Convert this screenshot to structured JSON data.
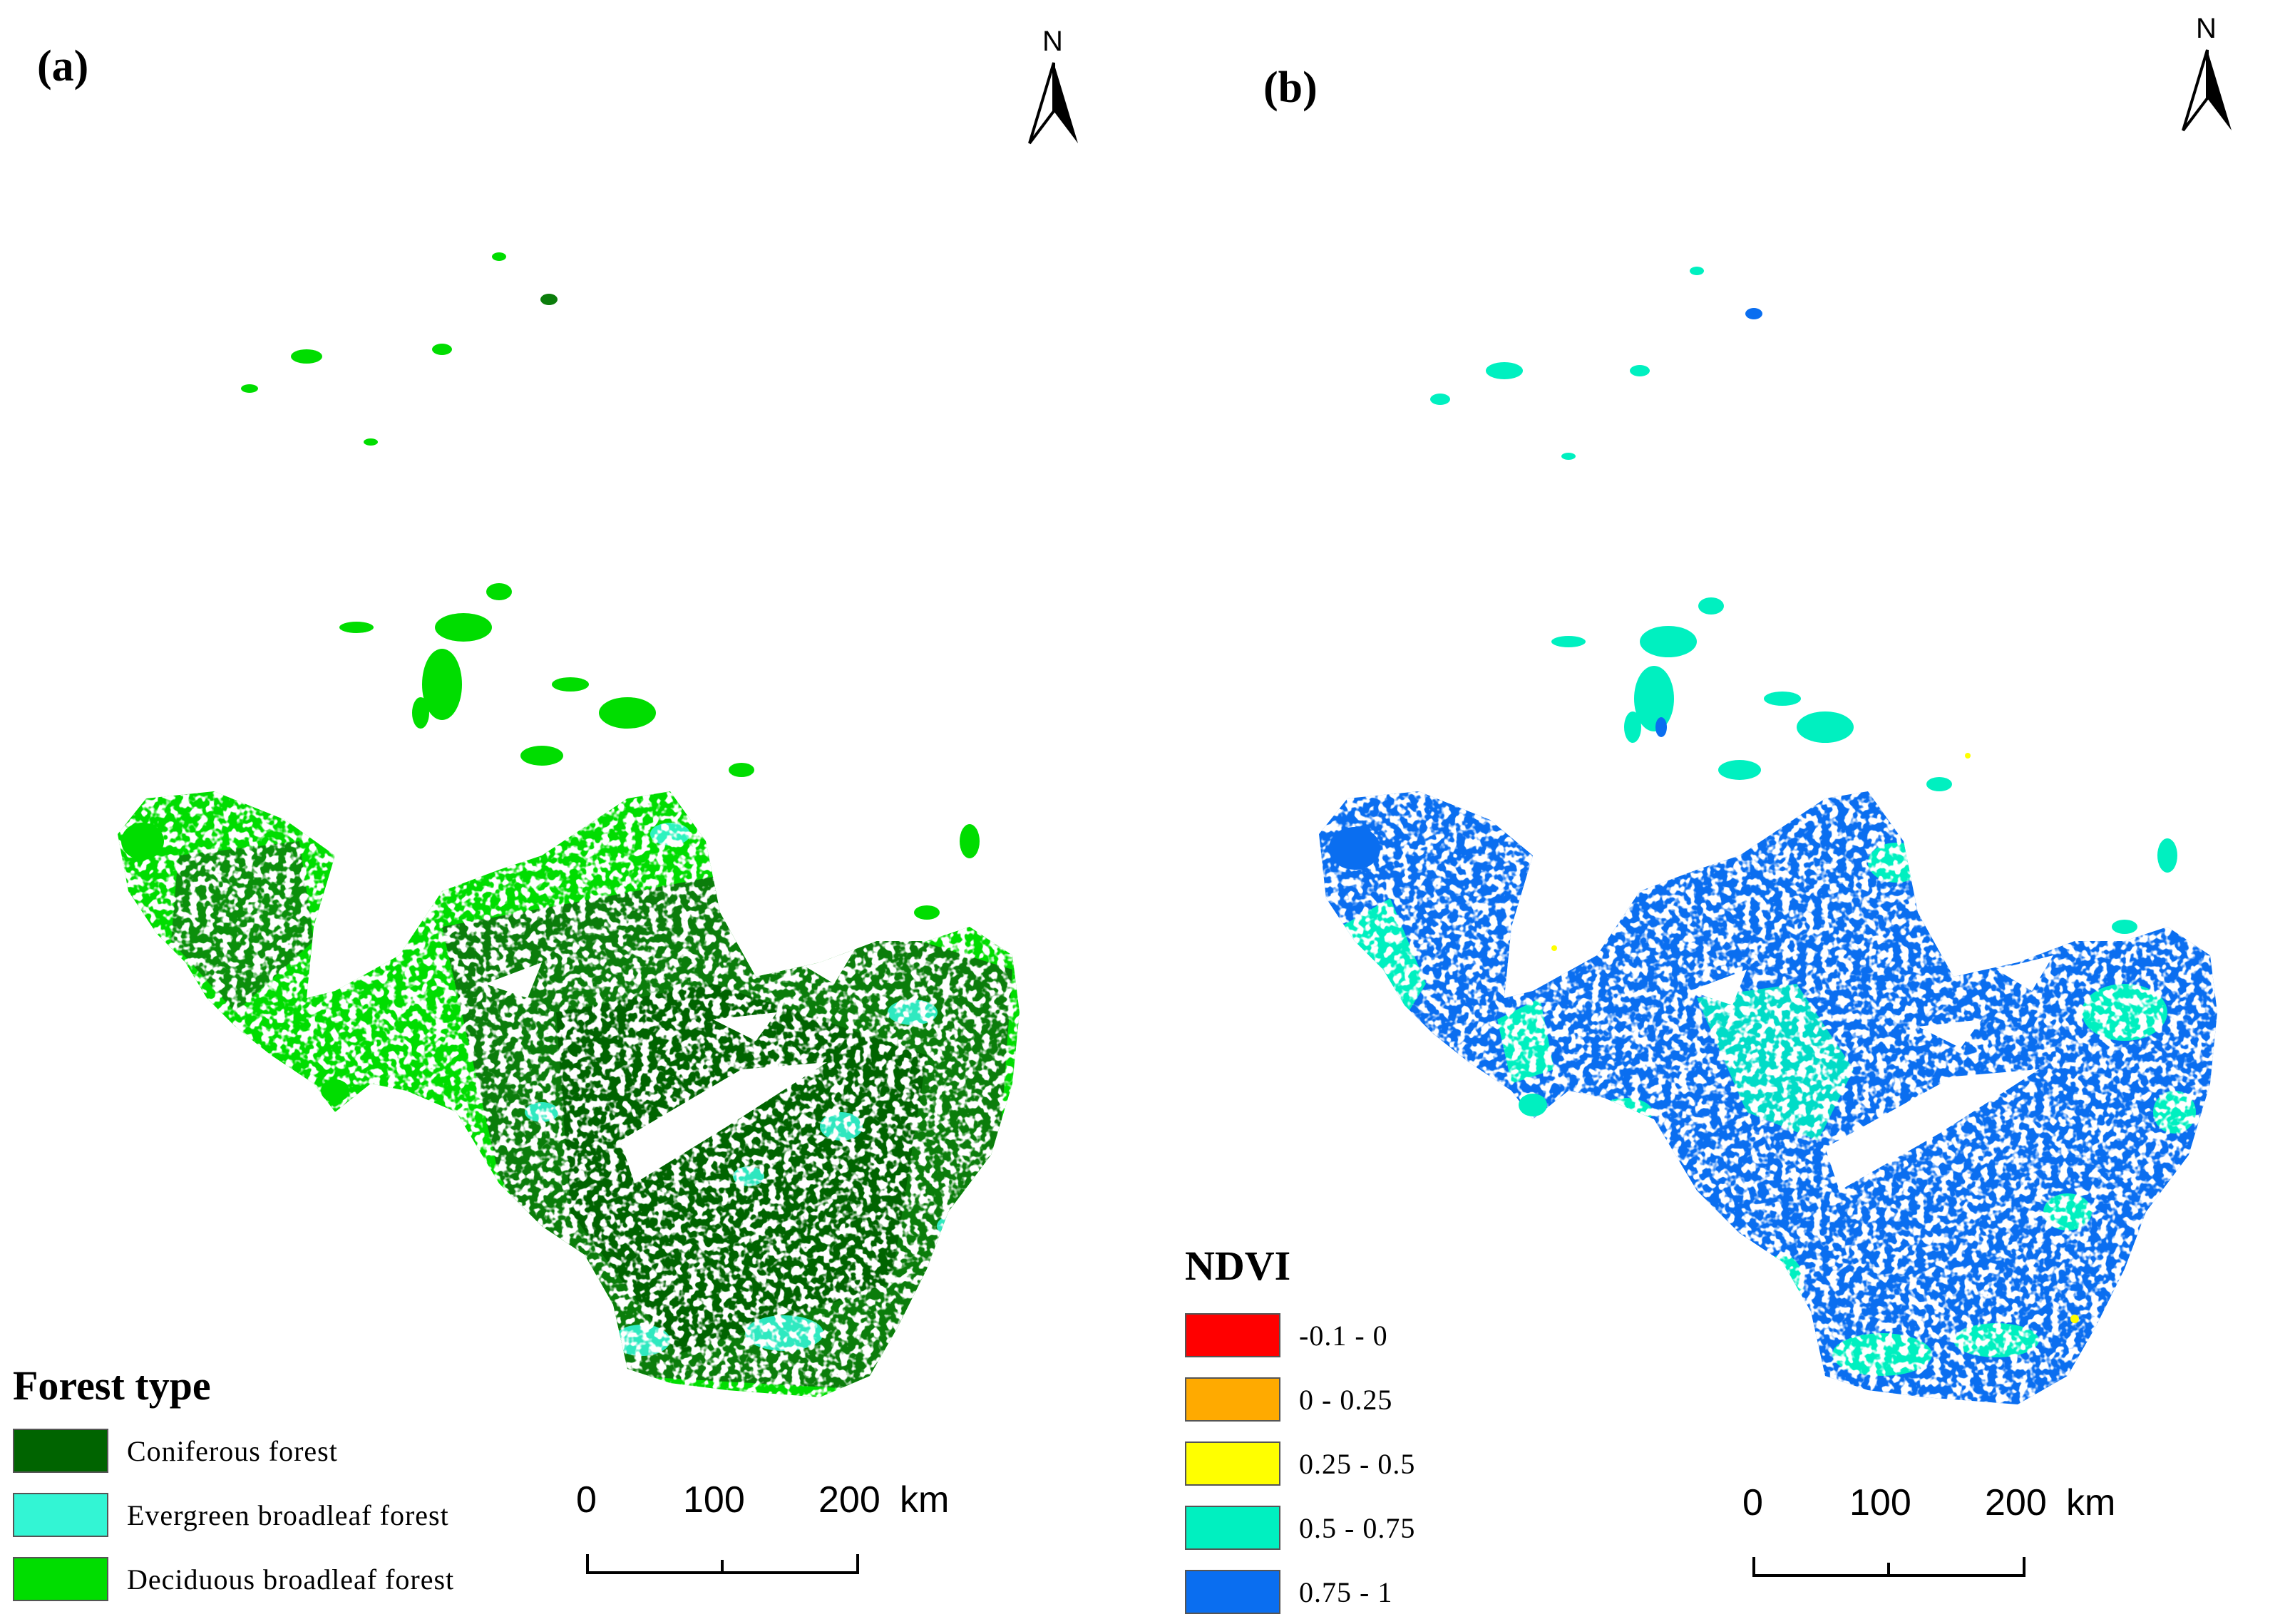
{
  "panels": {
    "a": {
      "label": "(a)",
      "north": "N"
    },
    "b": {
      "label": "(b)",
      "north": "N"
    }
  },
  "forest_legend": {
    "title": "Forest type",
    "items": [
      {
        "label": "Coniferous forest",
        "color": "#006400"
      },
      {
        "label": "Evergreen broadleaf forest",
        "color": "#33f5d4"
      },
      {
        "label": "Deciduous broadleaf forest",
        "color": "#00dd00"
      }
    ]
  },
  "ndvi_legend": {
    "title": "NDVI",
    "items": [
      {
        "label": "-0.1 - 0",
        "color": "#ff0000"
      },
      {
        "label": "0 - 0.25",
        "color": "#ffaa00"
      },
      {
        "label": "0.25 - 0.5",
        "color": "#ffff00"
      },
      {
        "label": "0.5 - 0.75",
        "color": "#00f0c0"
      },
      {
        "label": "0.75 - 1",
        "color": "#0a6ef0"
      }
    ]
  },
  "scalebar": {
    "ticks": [
      "0",
      "100",
      "200"
    ],
    "unit": "km"
  }
}
